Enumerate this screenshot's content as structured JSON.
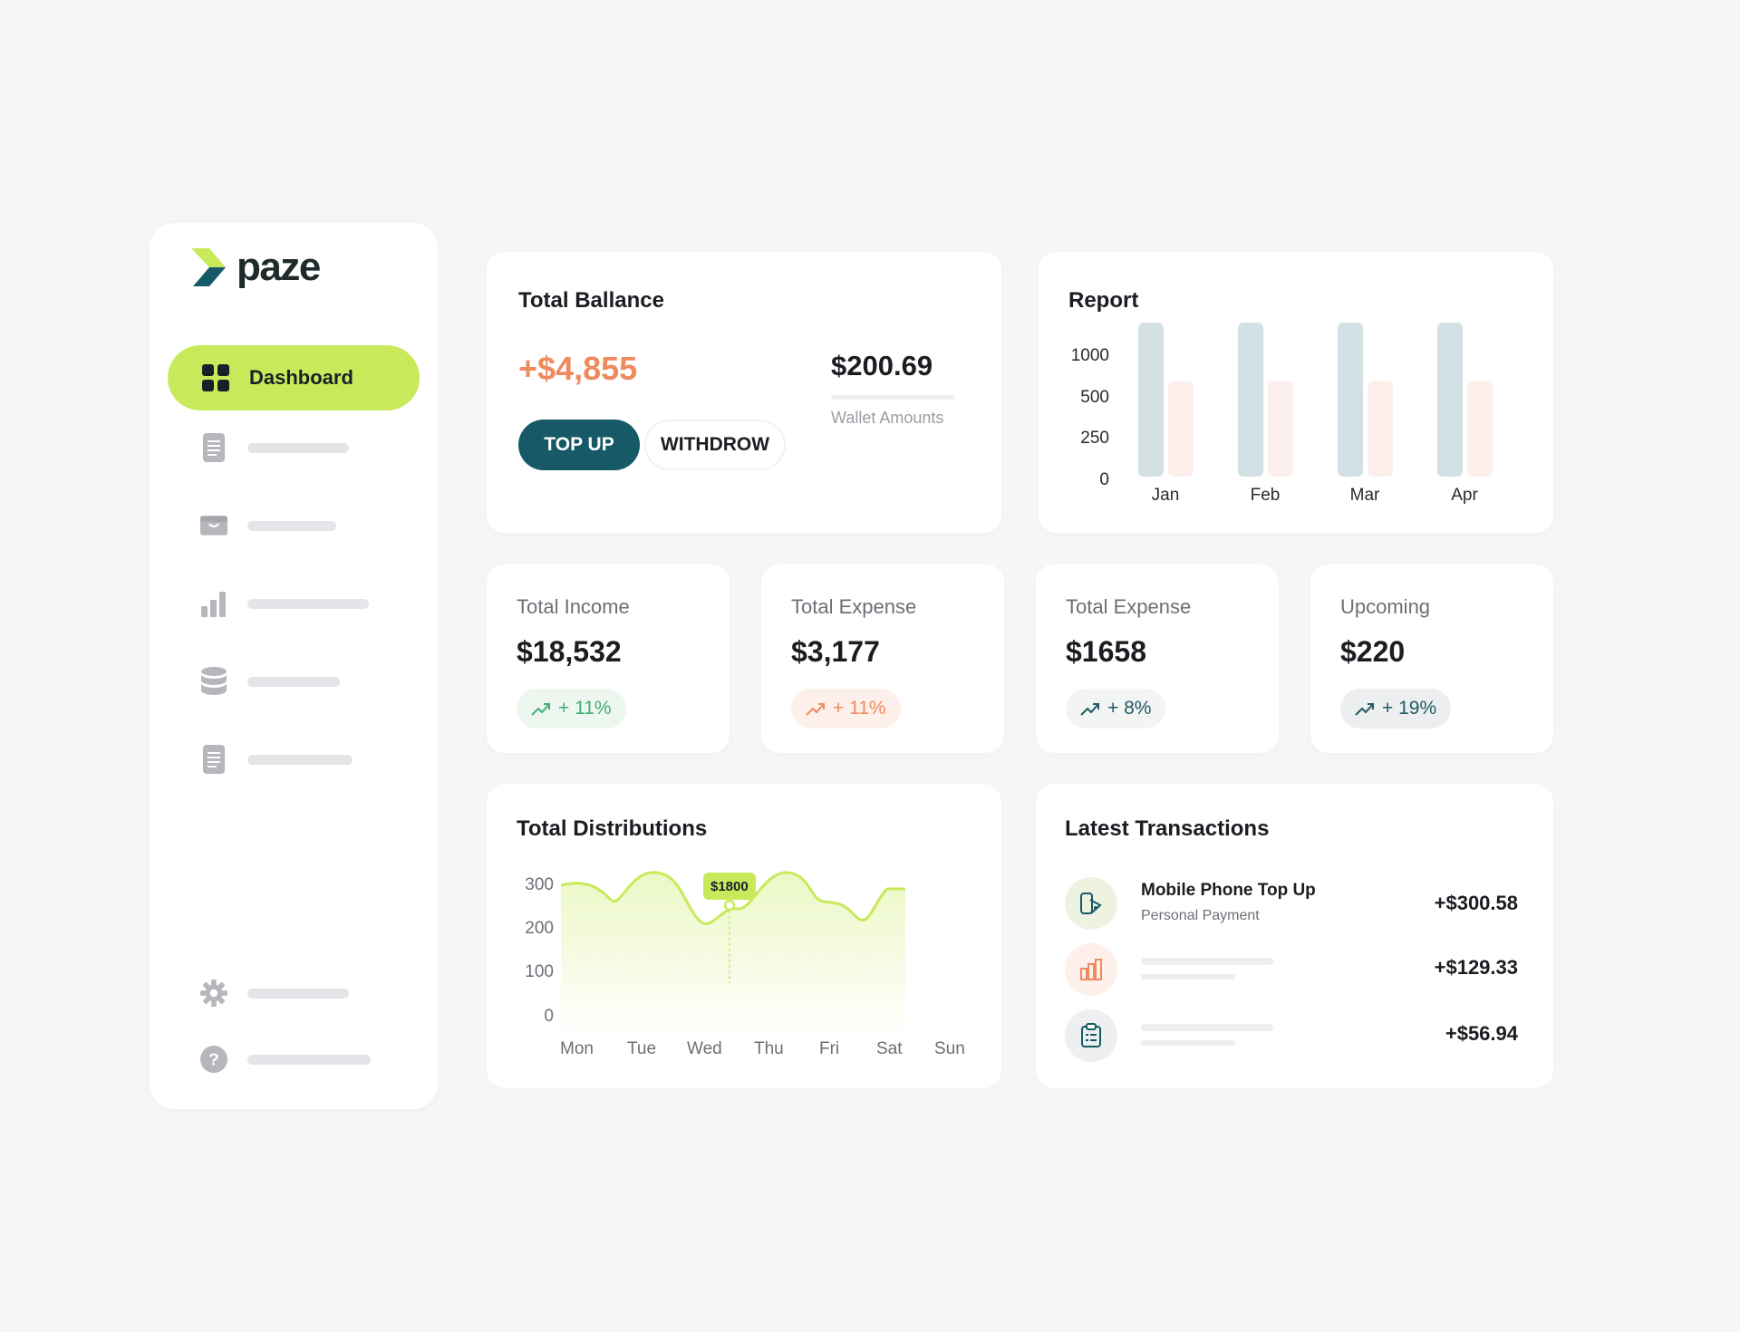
{
  "brand": {
    "name": "paze"
  },
  "sidebar": {
    "active_label": "Dashboard",
    "items": [
      {
        "icon": "document-icon"
      },
      {
        "icon": "wallet-icon"
      },
      {
        "icon": "bar-chart-icon"
      },
      {
        "icon": "database-icon"
      },
      {
        "icon": "document-icon"
      }
    ],
    "footer": [
      {
        "icon": "gear-icon"
      },
      {
        "icon": "help-icon"
      }
    ]
  },
  "balance": {
    "title": "Total Ballance",
    "amount": "+$4,855",
    "wallet_value": "$200.69",
    "wallet_label": "Wallet Amounts",
    "topup_label": "TOP UP",
    "withdraw_label": "WITHDROW"
  },
  "report": {
    "title": "Report",
    "chart_data": {
      "type": "bar",
      "categories": [
        "Jan",
        "Feb",
        "Mar",
        "Apr"
      ],
      "y_ticks": [
        "1000",
        "500",
        "250",
        "0"
      ],
      "series": [
        {
          "values": [
            1000,
            1000,
            1000,
            1000
          ],
          "color": "#d3e1e4"
        },
        {
          "values": [
            620,
            620,
            620,
            620
          ],
          "color": "#fdf0ec"
        }
      ]
    }
  },
  "stats": [
    {
      "label": "Total Income",
      "value": "$18,532",
      "change": "+ 11%",
      "color": "#3fae73",
      "bg": "#edf7f0"
    },
    {
      "label": "Total Expense",
      "value": "$3,177",
      "change": "+ 11%",
      "color": "#ef8a5e",
      "bg": "#fdf0ea"
    },
    {
      "label": "Total Expense",
      "value": "$1658",
      "change": "+ 8%",
      "color": "#1f5a62",
      "bg": "#f3f4f4"
    },
    {
      "label": "Upcoming",
      "value": "$220",
      "change": "+ 19%",
      "color": "#1f5a62",
      "bg": "#eceeef"
    }
  ],
  "distributions": {
    "title": "Total Distributions",
    "tooltip": "$1800",
    "chart_data": {
      "type": "area",
      "x": [
        "Mon",
        "Tue",
        "Wed",
        "Thu",
        "Fri",
        "Sat",
        "Sun"
      ],
      "y_ticks": [
        "300",
        "200",
        "100",
        "0"
      ],
      "ylim": [
        0,
        300
      ],
      "line_color": "#c8ea5a"
    }
  },
  "transactions": {
    "title": "Latest Transactions",
    "items": [
      {
        "title": "Mobile Phone Top Up",
        "subtitle": "Personal Payment",
        "amount": "+$300.58",
        "icon": "phone-topup-icon"
      },
      {
        "title": "",
        "subtitle": "",
        "amount": "+$129.33",
        "icon": "bar-chart-icon"
      },
      {
        "title": "",
        "subtitle": "",
        "amount": "+$56.94",
        "icon": "clipboard-icon"
      }
    ]
  }
}
